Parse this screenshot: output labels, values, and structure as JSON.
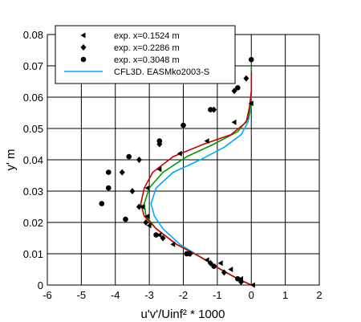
{
  "chart_data": {
    "type": "scatter",
    "xlabel": "u'v'/Uinf² * 1000",
    "ylabel": "y' m",
    "xlim": [
      -6,
      2
    ],
    "ylim": [
      0,
      0.08
    ],
    "grid": true,
    "legend_position": "top",
    "x_ticks": [
      "-6",
      "-5",
      "-4",
      "-3",
      "-2",
      "-1",
      "0",
      "1",
      "2"
    ],
    "y_ticks": [
      "0",
      "0.01",
      "0.02",
      "0.03",
      "0.04",
      "0.05",
      "0.06",
      "0.07",
      "0.08"
    ],
    "scatter_series": [
      {
        "name": "exp. x=0.1524 m",
        "marker": "triangle-left",
        "points": [
          [
            0.05,
            0.0
          ],
          [
            -0.3,
            0.002
          ],
          [
            -0.6,
            0.005
          ],
          [
            -0.9,
            0.007
          ],
          [
            -1.3,
            0.008
          ],
          [
            -1.9,
            0.01
          ],
          [
            -2.3,
            0.013
          ],
          [
            -2.7,
            0.016
          ],
          [
            -3.0,
            0.019
          ],
          [
            -3.05,
            0.022
          ],
          [
            -3.2,
            0.025
          ],
          [
            -3.05,
            0.031
          ],
          [
            -2.7,
            0.037
          ],
          [
            -2.1,
            0.042
          ],
          [
            -1.3,
            0.046
          ],
          [
            -0.5,
            0.052
          ],
          [
            0.0,
            0.058
          ]
        ]
      },
      {
        "name": "exp. x=0.2286 m",
        "marker": "diamond",
        "points": [
          [
            -0.3,
            0.001
          ],
          [
            -0.8,
            0.004
          ],
          [
            -1.2,
            0.007
          ],
          [
            -1.8,
            0.01
          ],
          [
            -2.6,
            0.015
          ],
          [
            -3.1,
            0.02
          ],
          [
            -3.3,
            0.025
          ],
          [
            -3.5,
            0.03
          ],
          [
            -3.8,
            0.036
          ],
          [
            -3.3,
            0.04
          ],
          [
            -2.7,
            0.045
          ],
          [
            -1.1,
            0.056
          ],
          [
            -0.5,
            0.062
          ],
          [
            -0.15,
            0.066
          ]
        ]
      },
      {
        "name": "exp. x=0.3048 m",
        "marker": "circle",
        "points": [
          [
            -0.4,
            0.002
          ],
          [
            -1.1,
            0.006
          ],
          [
            -1.9,
            0.01
          ],
          [
            -2.8,
            0.016
          ],
          [
            -3.7,
            0.021
          ],
          [
            -4.4,
            0.026
          ],
          [
            -4.2,
            0.031
          ],
          [
            -4.2,
            0.036
          ],
          [
            -3.6,
            0.041
          ],
          [
            -2.7,
            0.046
          ],
          [
            -2.0,
            0.051
          ],
          [
            -1.2,
            0.056
          ],
          [
            -0.4,
            0.063
          ],
          [
            0.0,
            0.072
          ]
        ]
      }
    ],
    "line_series": [
      {
        "name": "CFL3D. EASMko2003-S",
        "color": "#00aaff",
        "points": [
          [
            0.0,
            0.0
          ],
          [
            -0.4,
            0.002
          ],
          [
            -0.9,
            0.005
          ],
          [
            -1.5,
            0.009
          ],
          [
            -2.1,
            0.013
          ],
          [
            -2.6,
            0.018
          ],
          [
            -2.85,
            0.022
          ],
          [
            -2.95,
            0.026
          ],
          [
            -2.8,
            0.031
          ],
          [
            -2.3,
            0.036
          ],
          [
            -1.5,
            0.04
          ],
          [
            -0.8,
            0.044
          ],
          [
            -0.3,
            0.048
          ],
          [
            -0.1,
            0.052
          ],
          [
            -0.02,
            0.056
          ],
          [
            0.0,
            0.06
          ],
          [
            0.0,
            0.07
          ]
        ]
      },
      {
        "color": "#009900",
        "points": [
          [
            0.0,
            0.0
          ],
          [
            -0.4,
            0.002
          ],
          [
            -0.9,
            0.005
          ],
          [
            -1.5,
            0.009
          ],
          [
            -2.2,
            0.013
          ],
          [
            -2.8,
            0.018
          ],
          [
            -3.1,
            0.022
          ],
          [
            -3.15,
            0.026
          ],
          [
            -3.0,
            0.031
          ],
          [
            -2.6,
            0.036
          ],
          [
            -1.9,
            0.041
          ],
          [
            -1.1,
            0.045
          ],
          [
            -0.4,
            0.049
          ],
          [
            -0.1,
            0.053
          ],
          [
            -0.02,
            0.057
          ],
          [
            0.0,
            0.062
          ],
          [
            0.0,
            0.07
          ]
        ]
      },
      {
        "color": "#cc0000",
        "points": [
          [
            0.0,
            0.0
          ],
          [
            -0.4,
            0.002
          ],
          [
            -0.9,
            0.005
          ],
          [
            -1.5,
            0.009
          ],
          [
            -2.2,
            0.013
          ],
          [
            -2.8,
            0.018
          ],
          [
            -3.15,
            0.022
          ],
          [
            -3.25,
            0.026
          ],
          [
            -3.15,
            0.031
          ],
          [
            -2.9,
            0.036
          ],
          [
            -2.3,
            0.041
          ],
          [
            -1.4,
            0.045
          ],
          [
            -0.6,
            0.048
          ],
          [
            -0.15,
            0.052
          ],
          [
            -0.05,
            0.057
          ],
          [
            0.0,
            0.062
          ],
          [
            0.0,
            0.068
          ]
        ]
      }
    ],
    "legend": [
      {
        "label": "exp. x=0.1524 m",
        "marker": "triangle-left"
      },
      {
        "label": "exp. x=0.2286 m",
        "marker": "diamond"
      },
      {
        "label": "exp. x=0.3048 m",
        "marker": "circle"
      },
      {
        "label": "CFL3D. EASMko2003-S",
        "line_color": "#00aaff"
      }
    ]
  }
}
